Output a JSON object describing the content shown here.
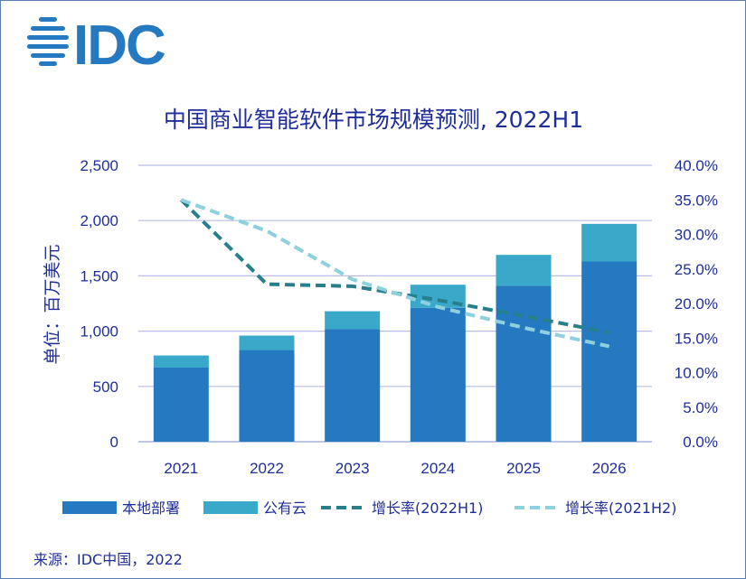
{
  "logo": {
    "text": "IDC"
  },
  "chart_data": {
    "type": "bar",
    "stacked": true,
    "title": "中国商业智能软件市场规模预测, 2022H1",
    "ylabel": "单位：百万美元",
    "categories": [
      "2021",
      "2022",
      "2023",
      "2024",
      "2025",
      "2026"
    ],
    "ylim": [
      0,
      2500
    ],
    "yticks": [
      "0",
      "500",
      "1,000",
      "1,500",
      "2,000",
      "2,500"
    ],
    "y2lim": [
      0,
      40
    ],
    "y2ticks": [
      "0.0%",
      "5.0%",
      "10.0%",
      "15.0%",
      "20.0%",
      "25.0%",
      "30.0%",
      "35.0%",
      "40.0%"
    ],
    "grid": true,
    "legend_position": "bottom",
    "series": [
      {
        "name": "本地部署",
        "kind": "bar",
        "axis": "left",
        "color": "#2479c0",
        "values": [
          670,
          830,
          1020,
          1210,
          1410,
          1630
        ]
      },
      {
        "name": "公有云",
        "kind": "bar",
        "axis": "left",
        "color": "#3aa9c9",
        "values": [
          110,
          130,
          160,
          210,
          280,
          340
        ]
      },
      {
        "name": "增长率(2022H1)",
        "kind": "line",
        "axis": "right",
        "color": "#277f8c",
        "dash": true,
        "values": [
          35.0,
          22.8,
          22.5,
          20.5,
          18.2,
          15.8
        ]
      },
      {
        "name": "增长率(2021H2)",
        "kind": "line",
        "axis": "right",
        "color": "#8fd0df",
        "dash": true,
        "values": [
          35.0,
          30.5,
          23.5,
          19.5,
          16.5,
          13.8
        ]
      }
    ]
  },
  "source": "来源：IDC中国，2022"
}
